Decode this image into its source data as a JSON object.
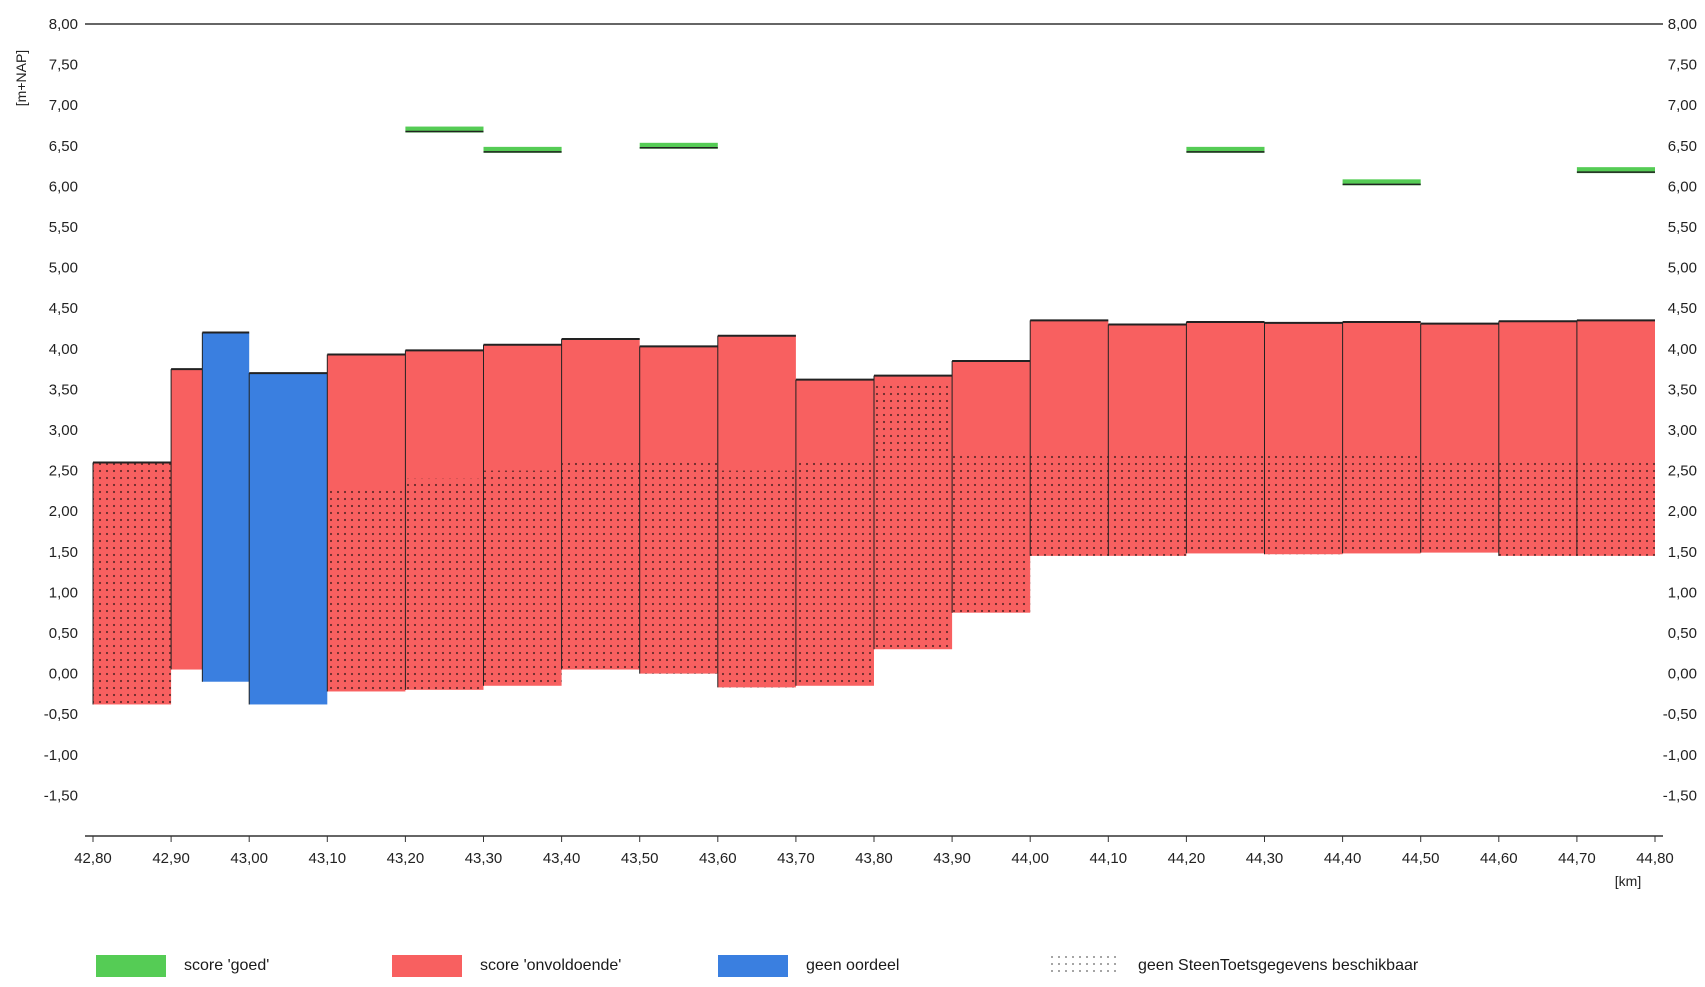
{
  "chart_data": {
    "type": "bar",
    "xlabel_unit": "[km]",
    "ylabel_unit": "[m+NAP]",
    "x_ticks": [
      "42,80",
      "42,90",
      "43,00",
      "43,10",
      "43,20",
      "43,30",
      "43,40",
      "43,50",
      "43,60",
      "43,70",
      "43,80",
      "43,90",
      "44,00",
      "44,10",
      "44,20",
      "44,30",
      "44,40",
      "44,50",
      "44,60",
      "44,70",
      "44,80"
    ],
    "y_ticks_left": [
      "8,00",
      "7,50",
      "7,00",
      "6,50",
      "6,00",
      "5,50",
      "5,00",
      "4,50",
      "4,00",
      "3,50",
      "3,00",
      "2,50",
      "2,00",
      "1,50",
      "1,00",
      "0,50",
      "0,00",
      "-0,50",
      "-1,00",
      "-1,50"
    ],
    "y_ticks_right": [
      "8,00",
      "7,50",
      "7,00",
      "6,50",
      "6,00",
      "5,50",
      "5,00",
      "4,50",
      "4,00",
      "3,50",
      "3,00",
      "2,50",
      "2,00",
      "1,50",
      "1,00",
      "0,50",
      "0,00",
      "-0,50",
      "-1,00",
      "-1,50"
    ],
    "xlim": [
      42.8,
      44.8
    ],
    "ylim": [
      -2.0,
      8.0
    ],
    "colors": {
      "goed": "#55cc55",
      "onvoldoende": "#f86060",
      "geen_oordeel": "#3a7fe0"
    },
    "segments": [
      {
        "x0": 42.8,
        "x1": 42.9,
        "score": "onvoldoende",
        "bottom": -0.38,
        "top": 2.6,
        "no_data_top": 2.6
      },
      {
        "x0": 42.9,
        "x1": 42.94,
        "score": "onvoldoende",
        "bottom": 0.05,
        "top": 3.75,
        "no_data_top": null
      },
      {
        "x0": 42.94,
        "x1": 43.0,
        "score": "geen oordeel",
        "bottom": -0.1,
        "top": 4.2,
        "no_data_top": null
      },
      {
        "x0": 43.0,
        "x1": 43.1,
        "score": "geen oordeel",
        "bottom": -0.38,
        "top": 3.7,
        "no_data_top": null
      },
      {
        "x0": 43.1,
        "x1": 43.2,
        "score": "onvoldoende",
        "bottom": -0.22,
        "top": 3.93,
        "no_data_top": 2.3
      },
      {
        "x0": 43.2,
        "x1": 43.3,
        "score": "onvoldoende",
        "bottom": -0.2,
        "top": 3.98,
        "no_data_top": 2.4
      },
      {
        "x0": 43.3,
        "x1": 43.4,
        "score": "onvoldoende",
        "bottom": -0.15,
        "top": 4.05,
        "no_data_top": 2.5
      },
      {
        "x0": 43.4,
        "x1": 43.5,
        "score": "onvoldoende",
        "bottom": 0.05,
        "top": 4.12,
        "no_data_top": 2.6
      },
      {
        "x0": 43.5,
        "x1": 43.6,
        "score": "onvoldoende",
        "bottom": 0.0,
        "top": 4.03,
        "no_data_top": 2.6
      },
      {
        "x0": 43.6,
        "x1": 43.7,
        "score": "onvoldoende",
        "bottom": -0.17,
        "top": 4.16,
        "no_data_top": 2.5
      },
      {
        "x0": 43.7,
        "x1": 43.8,
        "score": "onvoldoende",
        "bottom": -0.15,
        "top": 3.62,
        "no_data_top": 2.6
      },
      {
        "x0": 43.8,
        "x1": 43.9,
        "score": "onvoldoende",
        "bottom": 0.3,
        "top": 3.67,
        "no_data_top": 3.55
      },
      {
        "x0": 43.9,
        "x1": 44.0,
        "score": "onvoldoende",
        "bottom": 0.75,
        "top": 3.85,
        "no_data_top": 2.7
      },
      {
        "x0": 44.0,
        "x1": 44.1,
        "score": "onvoldoende",
        "bottom": 1.45,
        "top": 4.35,
        "no_data_top": 2.7
      },
      {
        "x0": 44.1,
        "x1": 44.2,
        "score": "onvoldoende",
        "bottom": 1.45,
        "top": 4.3,
        "no_data_top": 2.7
      },
      {
        "x0": 44.2,
        "x1": 44.3,
        "score": "onvoldoende",
        "bottom": 1.48,
        "top": 4.33,
        "no_data_top": 2.7
      },
      {
        "x0": 44.3,
        "x1": 44.4,
        "score": "onvoldoende",
        "bottom": 1.47,
        "top": 4.32,
        "no_data_top": 2.7
      },
      {
        "x0": 44.4,
        "x1": 44.5,
        "score": "onvoldoende",
        "bottom": 1.48,
        "top": 4.33,
        "no_data_top": 2.7
      },
      {
        "x0": 44.5,
        "x1": 44.6,
        "score": "onvoldoende",
        "bottom": 1.49,
        "top": 4.31,
        "no_data_top": 2.65
      },
      {
        "x0": 44.6,
        "x1": 44.7,
        "score": "onvoldoende",
        "bottom": 1.45,
        "top": 4.34,
        "no_data_top": 2.65
      },
      {
        "x0": 44.7,
        "x1": 44.8,
        "score": "onvoldoende",
        "bottom": 1.45,
        "top": 4.35,
        "no_data_top": 2.65
      }
    ],
    "goed_segments": [
      {
        "x0": 43.2,
        "x1": 43.3,
        "y": 6.7
      },
      {
        "x0": 43.3,
        "x1": 43.4,
        "y": 6.45
      },
      {
        "x0": 43.5,
        "x1": 43.6,
        "y": 6.5
      },
      {
        "x0": 44.2,
        "x1": 44.3,
        "y": 6.45
      },
      {
        "x0": 44.4,
        "x1": 44.5,
        "y": 6.05
      },
      {
        "x0": 44.7,
        "x1": 44.8,
        "y": 6.2
      }
    ],
    "grid": false,
    "legend_position": "bottom"
  },
  "legend": [
    {
      "label": "score 'goed'",
      "swatch": "goed"
    },
    {
      "label": "score 'onvoldoende'",
      "swatch": "onvoldoende"
    },
    {
      "label": "geen oordeel",
      "swatch": "geen_oordeel"
    },
    {
      "label": "geen SteenToetsgegevens beschikbaar",
      "swatch": "dots"
    }
  ]
}
